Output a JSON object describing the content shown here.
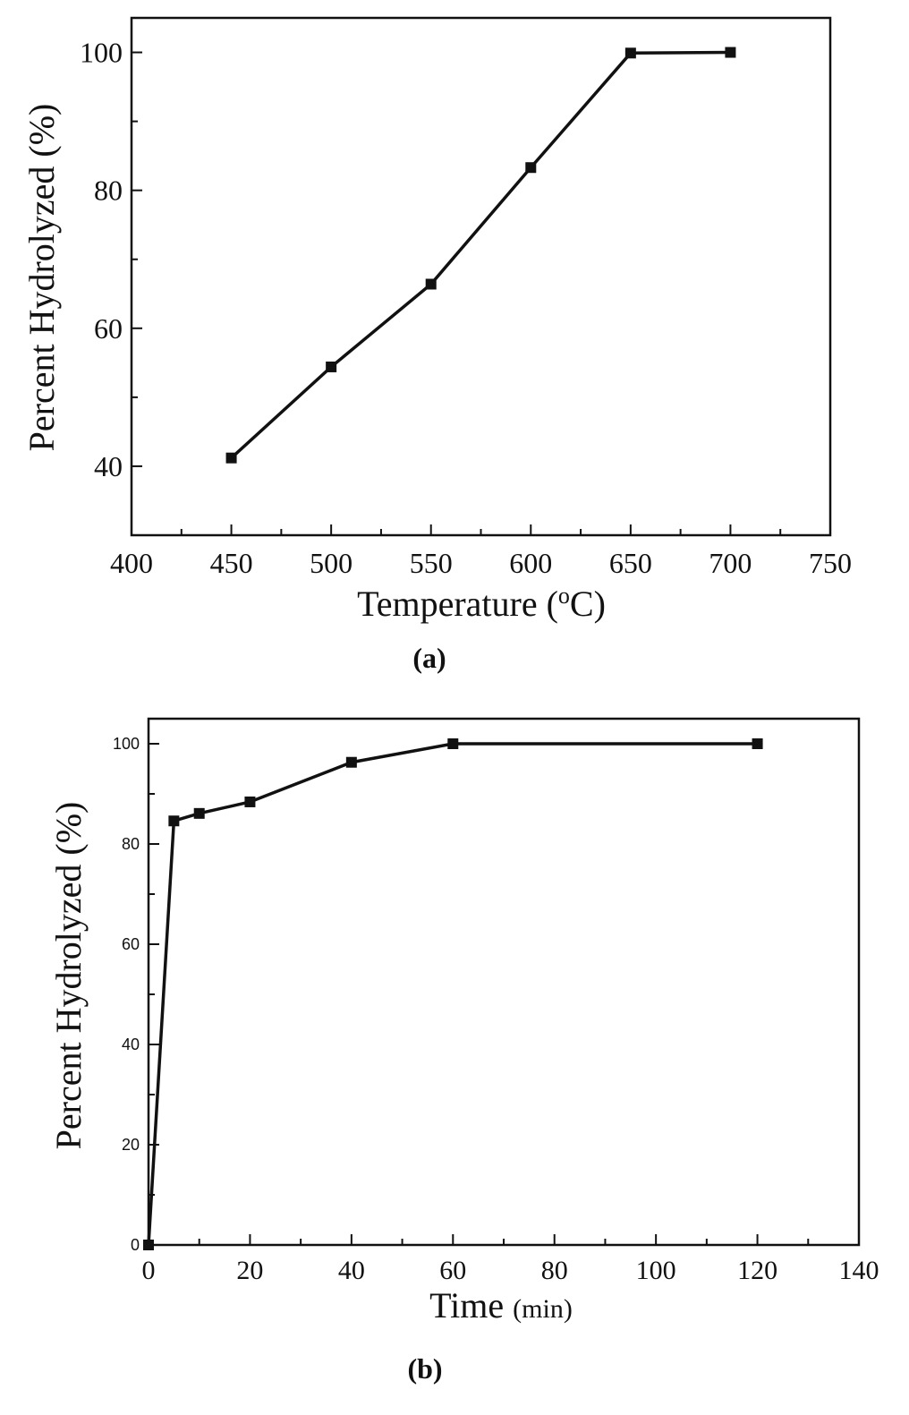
{
  "chart_data": [
    {
      "type": "line",
      "panel_label": "(a)",
      "xlabel": "Temperature (",
      "xlabel_sup": "o",
      "xlabel_end": "C)",
      "ylabel": "Percent Hydrolyzed (%)",
      "xlim": [
        400,
        750
      ],
      "ylim": [
        30,
        105
      ],
      "xticks": [
        400,
        450,
        500,
        550,
        600,
        650,
        700,
        750
      ],
      "yticks": [
        40,
        60,
        80,
        100
      ],
      "grid": false,
      "marker": "square",
      "line_color": "#111111",
      "x": [
        450,
        500,
        550,
        600,
        650,
        700
      ],
      "values": [
        41.2,
        54.4,
        66.4,
        83.3,
        99.9,
        100
      ]
    },
    {
      "type": "line",
      "panel_label": "(b)",
      "xlabel": "Time ",
      "xlabel_small": "(min)",
      "ylabel": "Percent Hydrolyzed (%)",
      "xlim": [
        0,
        140
      ],
      "ylim": [
        0,
        105
      ],
      "xticks": [
        0,
        20,
        40,
        60,
        80,
        100,
        120,
        140
      ],
      "yticks": [
        0,
        20,
        40,
        60,
        80,
        100
      ],
      "grid": false,
      "marker": "square",
      "line_color": "#111111",
      "x": [
        0,
        5,
        10,
        20,
        40,
        60,
        120
      ],
      "values": [
        0,
        84.6,
        86.1,
        88.4,
        96.3,
        100,
        100
      ]
    }
  ]
}
